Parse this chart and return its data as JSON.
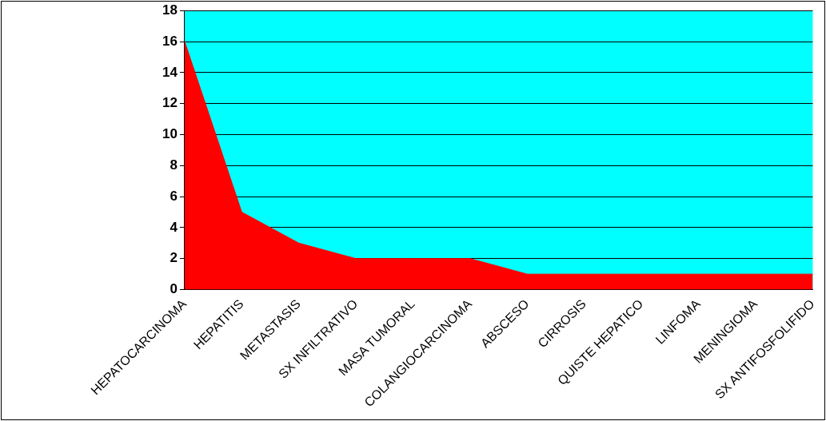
{
  "chart_data": {
    "type": "area",
    "categories": [
      "HEPATOCARCINOMA",
      "HEPATITIS",
      "METASTASIS",
      "SX INFILTRATIVO",
      "MASA TUMORAL",
      "COLANGIOCARCINOMA",
      "ABSCESO",
      "CIRROSIS",
      "QUISTE HEPATICO",
      "LINFOMA",
      "MENINGIOMA",
      "SX ANTIFOSFOLIFIDO"
    ],
    "series": [
      {
        "color": "#ff0000",
        "values": [
          16,
          5,
          3,
          2,
          2,
          2,
          1,
          1,
          1,
          1,
          1,
          1
        ]
      }
    ],
    "ylim": [
      0,
      18
    ],
    "yticks": [
      0,
      2,
      4,
      6,
      8,
      10,
      12,
      14,
      16,
      18
    ],
    "grid": "y",
    "legend": false,
    "marker": "none"
  }
}
